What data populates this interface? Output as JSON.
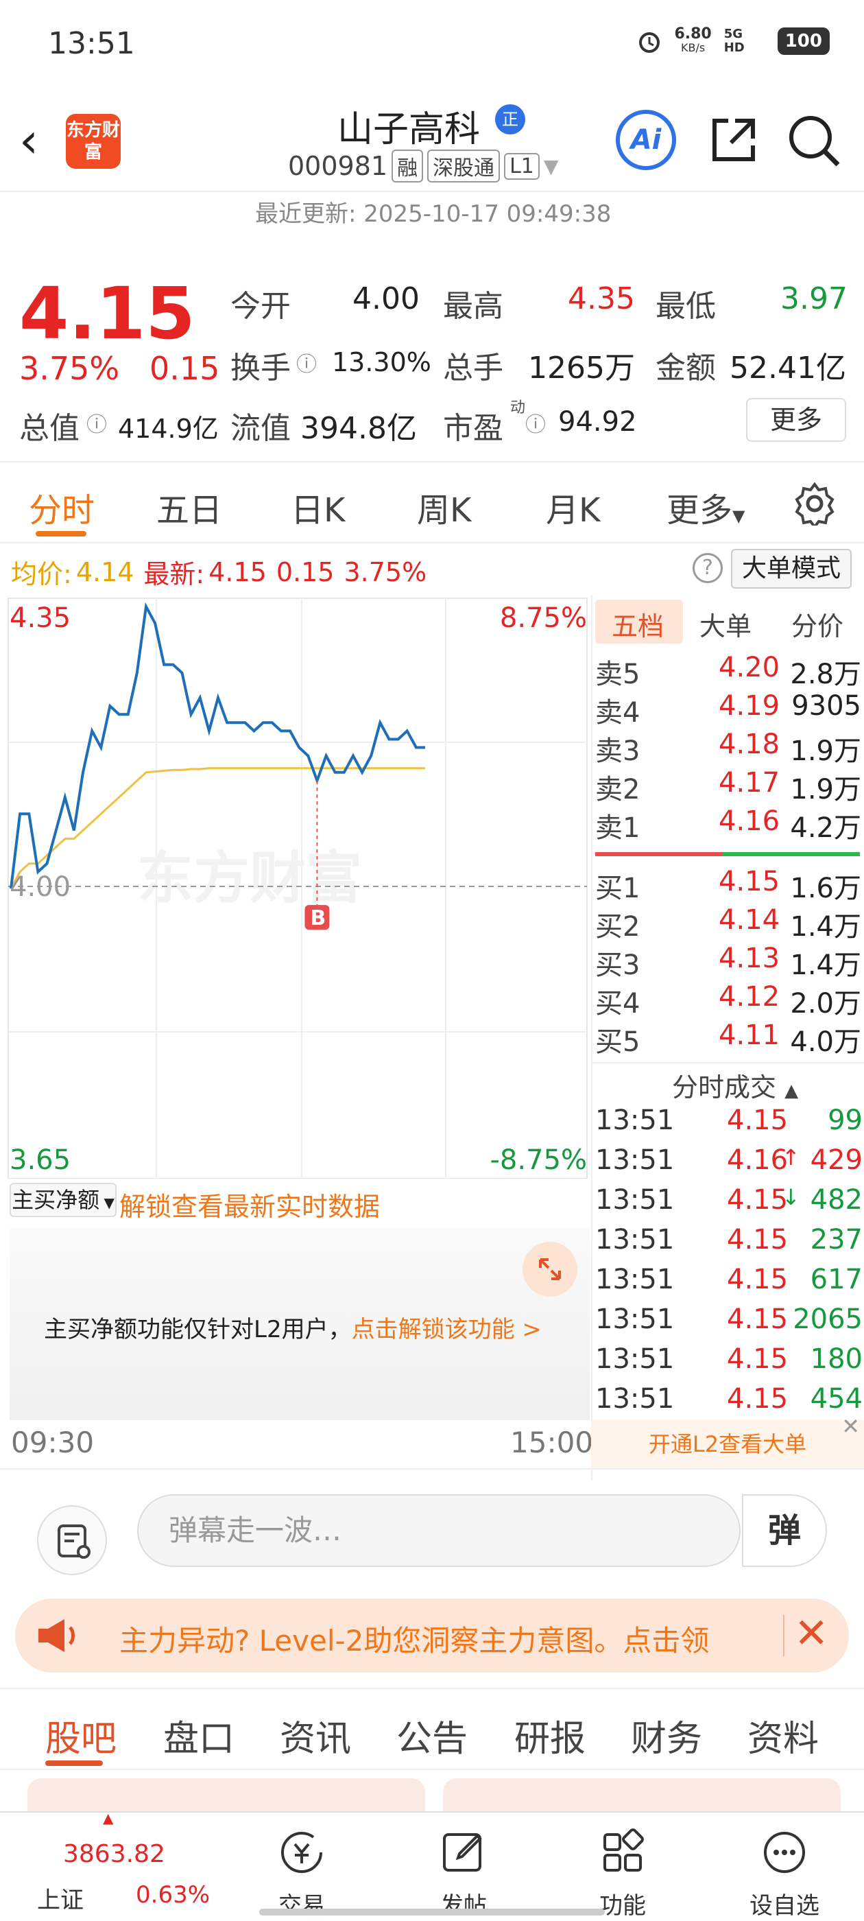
{
  "status_bar": {
    "time": "13:51",
    "net_speed": "6.80",
    "net_unit": "KB/s",
    "signal": "5G HD",
    "battery": "100"
  },
  "header": {
    "stock_name": "山子高科",
    "badge": "正",
    "code": "000981",
    "tags": [
      "融",
      "深股通",
      "L1"
    ],
    "logo": "东方财富",
    "ai_label": "Ai"
  },
  "update": "最近更新: 2025-10-17 09:49:38",
  "quote": {
    "price": "4.15",
    "pct": "3.75%",
    "change": "0.15",
    "open_label": "今开",
    "open": "4.00",
    "high_label": "最高",
    "high": "4.35",
    "low_label": "最低",
    "low": "3.97",
    "turnover_label": "换手",
    "turnover": "13.30%",
    "volume_label": "总手",
    "volume": "1265万",
    "amount_label": "金额",
    "amount": "52.41亿",
    "mcap_label": "总值",
    "mcap": "414.9亿",
    "float_label": "流值",
    "float": "394.8亿",
    "pe_label": "市盈",
    "pe_sup": "动",
    "pe": "94.92",
    "more": "更多"
  },
  "tabs": [
    "分时",
    "五日",
    "日K",
    "周K",
    "月K",
    "更多"
  ],
  "info": {
    "avg_label": "均价:",
    "avg": "4.14",
    "latest_label": "最新:",
    "latest": "4.15",
    "change": "0.15",
    "pct": "3.75%",
    "help": "?",
    "big_order_mode": "大单模式"
  },
  "chart_data": {
    "type": "line",
    "y_top": "4.35",
    "y_mid": "4.00",
    "y_bottom": "3.65",
    "pct_top": "8.75%",
    "pct_bottom": "-8.75%",
    "ylim": [
      3.65,
      4.35
    ],
    "x_start": "09:30",
    "x_end": "15:00",
    "marker": "B",
    "watermark": "东方财富",
    "price_series": [
      4.0,
      4.09,
      4.09,
      4.02,
      4.03,
      4.07,
      4.11,
      4.07,
      4.14,
      4.19,
      4.17,
      4.22,
      4.21,
      4.21,
      4.26,
      4.34,
      4.32,
      4.27,
      4.27,
      4.26,
      4.21,
      4.23,
      4.19,
      4.23,
      4.2,
      4.2,
      4.2,
      4.19,
      4.2,
      4.2,
      4.19,
      4.19,
      4.17,
      4.16,
      4.13,
      4.16,
      4.14,
      4.14,
      4.16,
      4.14,
      4.16,
      4.2,
      4.18,
      4.18,
      4.19,
      4.17,
      4.17
    ],
    "avg_series": [
      4.0,
      4.02,
      4.03,
      4.03,
      4.04,
      4.05,
      4.06,
      4.06,
      4.07,
      4.08,
      4.09,
      4.1,
      4.11,
      4.12,
      4.13,
      4.14,
      4.141,
      4.142,
      4.143,
      4.143,
      4.144,
      4.144,
      4.145,
      4.145,
      4.145,
      4.145,
      4.145,
      4.145,
      4.145,
      4.145,
      4.145,
      4.145,
      4.145,
      4.145,
      4.145,
      4.145,
      4.145,
      4.145,
      4.145,
      4.145,
      4.145,
      4.145,
      4.145,
      4.145,
      4.145,
      4.145,
      4.145
    ]
  },
  "book": {
    "tabs": [
      "五档",
      "大单",
      "分价"
    ],
    "sell": [
      {
        "label": "卖5",
        "price": "4.20",
        "vol": "2.8万"
      },
      {
        "label": "卖4",
        "price": "4.19",
        "vol": "9305"
      },
      {
        "label": "卖3",
        "price": "4.18",
        "vol": "1.9万"
      },
      {
        "label": "卖2",
        "price": "4.17",
        "vol": "1.9万"
      },
      {
        "label": "卖1",
        "price": "4.16",
        "vol": "4.2万"
      }
    ],
    "buy": [
      {
        "label": "买1",
        "price": "4.15",
        "vol": "1.6万"
      },
      {
        "label": "买2",
        "price": "4.14",
        "vol": "1.4万"
      },
      {
        "label": "买3",
        "price": "4.13",
        "vol": "1.4万"
      },
      {
        "label": "买4",
        "price": "4.12",
        "vol": "2.0万"
      },
      {
        "label": "买5",
        "price": "4.11",
        "vol": "4.0万"
      }
    ],
    "ticks_title": "分时成交",
    "ticks": [
      {
        "time": "13:51",
        "price": "4.15",
        "arrow": "",
        "vol": "99",
        "c": "green"
      },
      {
        "time": "13:51",
        "price": "4.16",
        "arrow": "↑",
        "vol": "429",
        "c": "red"
      },
      {
        "time": "13:51",
        "price": "4.15",
        "arrow": "↓",
        "vol": "482",
        "c": "green"
      },
      {
        "time": "13:51",
        "price": "4.15",
        "arrow": "",
        "vol": "237",
        "c": "green"
      },
      {
        "time": "13:51",
        "price": "4.15",
        "arrow": "",
        "vol": "617",
        "c": "green"
      },
      {
        "time": "13:51",
        "price": "4.15",
        "arrow": "",
        "vol": "2065",
        "c": "green"
      },
      {
        "time": "13:51",
        "price": "4.15",
        "arrow": "",
        "vol": "180",
        "c": "green"
      },
      {
        "time": "13:51",
        "price": "4.15",
        "arrow": "",
        "vol": "454",
        "c": "green"
      }
    ],
    "open_l2": "开通L2查看大单"
  },
  "net": {
    "label": "主买净额",
    "unlock": "解锁查看最新实时数据",
    "msg": "主买净额功能仅针对L2用户，",
    "msg_link": "点击解锁该功能 >"
  },
  "danmu": {
    "placeholder": "弹幕走一波…",
    "btn": "弹"
  },
  "banner": {
    "text": "主力异动? Level-2助您洞察主力意图。点击领"
  },
  "subtabs": [
    "股吧",
    "盘口",
    "资讯",
    "公告",
    "研报",
    "财务",
    "资料"
  ],
  "bottom_nav": {
    "index_value": "3863.82",
    "index_name": "上证",
    "index_pct": "0.63%",
    "items": [
      "交易",
      "发帖",
      "功能",
      "设自选"
    ]
  }
}
